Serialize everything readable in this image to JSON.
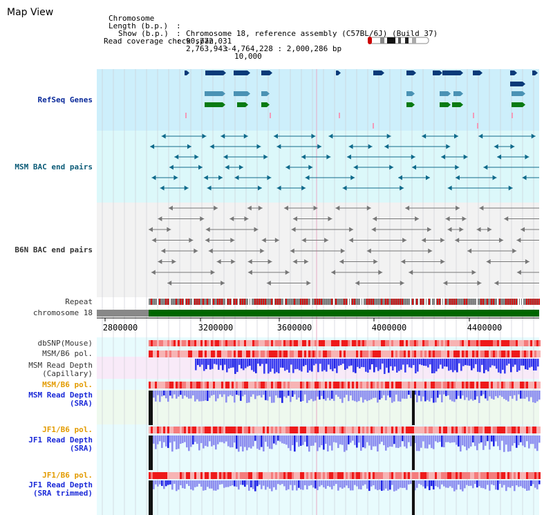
{
  "header": {
    "title": "Map View",
    "info": [
      {
        "label": "Chromosome",
        "value": "Chromosome 18, reference assembly (C57BL/6J) (Build 37)"
      },
      {
        "label": "Length (b.p.)",
        "value": "90,772,031"
      },
      {
        "label": "Show (b.p.)",
        "value": "2,763,943-4,764,228 : 2,000,286 bp"
      },
      {
        "label": "Read coverage check span",
        "value": "10,000"
      }
    ]
  },
  "tracks": {
    "refseq": "RefSeq Genes",
    "msm_bac": "MSM BAC end pairs",
    "b6n_bac": "B6N BAC end pairs",
    "repeat": "Repeat",
    "chromosome": "chromosome 18",
    "dbsnp": "dbSNP(Mouse)",
    "msm_b6_pol_1": "MSM/B6 pol.",
    "msm_depth_cap_1": "MSM Read Depth",
    "msm_depth_cap_2": "(Capillary)",
    "msm_b6_pol_2": "MSM/B6 pol.",
    "msm_depth_sra_1": "MSM Read Depth",
    "msm_depth_sra_2": "(SRA)",
    "jf1_b6_pol_1": "JF1/B6 pol.",
    "jf1_depth_sra_1": "JF1 Read Depth",
    "jf1_depth_sra_2": "(SRA)",
    "jf1_b6_pol_2": "JF1/B6 pol.",
    "jf1_depth_trim_1": "JF1 Read Depth",
    "jf1_depth_trim_2": "(SRA trimmed)"
  },
  "axis": {
    "ticks": [
      "2800000",
      "3200000",
      "3600000",
      "4000000",
      "4400000"
    ]
  },
  "colors": {
    "refseq_bg": "#cdeffb",
    "msm_bg": "#dcf8fa",
    "b6n_bg": "#f2f2f2",
    "msm_feature": "#0f6a8b",
    "b6n_feature": "#777777",
    "gene_navy": "#0a3a78",
    "gene_mid": "#4a92b4",
    "gene_green": "#0a7a12",
    "chrom_green": "#006600",
    "depth_blue": "#1e22e6",
    "depth_light": "#8c8ef0",
    "pol_red": "#ee1a1a",
    "pol_pink": "#f7b4b4"
  }
}
